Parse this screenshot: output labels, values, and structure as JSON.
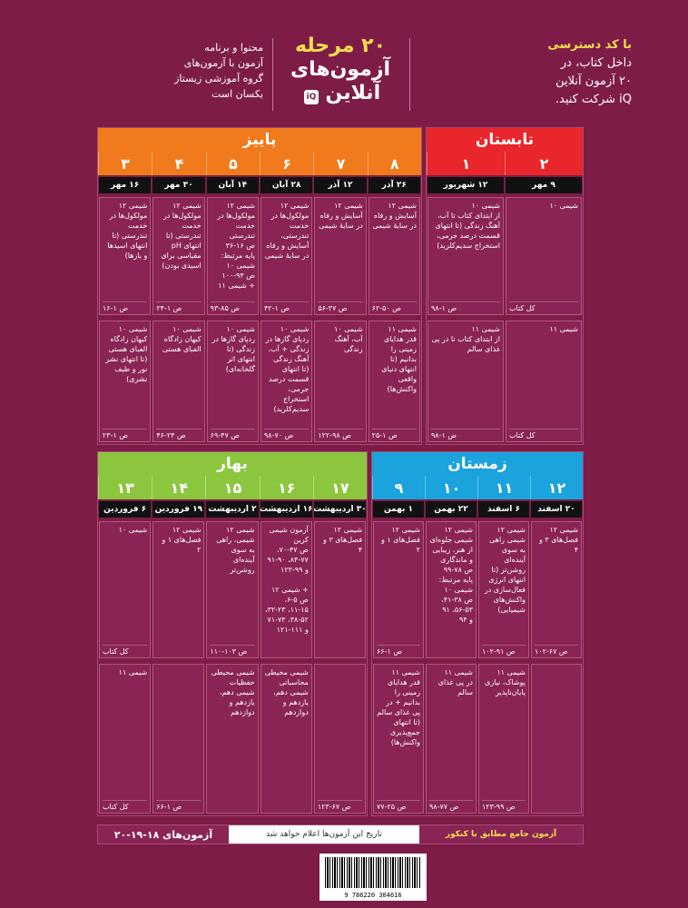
{
  "header": {
    "access": [
      "با کد دسترسی",
      "داخل کتاب، در",
      "۲۰ آزمون آنلاین",
      "iQ شرکت کنید."
    ],
    "title": [
      "۲۰ مرحله",
      "آزمون‌های",
      "آنلاین"
    ],
    "logo": "iQ",
    "content": [
      "محتوا و برنامه",
      "آزمون با آزمون‌های",
      "گروه آموزشی زیستاز",
      "یکسان است"
    ]
  },
  "groups": [
    {
      "id": "summer",
      "label": "تابستان",
      "color": "#e8262b",
      "nums": [
        "۱",
        "۲"
      ],
      "dates": [
        "۱۲ شهریور",
        "۹ مهر"
      ],
      "row1": [
        {
          "text": "شیمی ۱۰\nاز ابتدای کتاب تا آب، آهنگ زندگی (تا انتهای قسمت درصد جرمی، استخراج سدیم‌کلرید)",
          "page": "ص ۱-۹۸"
        },
        {
          "text": "شیمی ۱۰",
          "page": "کل کتاب"
        }
      ],
      "row2": [
        {
          "text": "شیمی ۱۱\nاز ابتدای کتاب تا در پی غذای سالم",
          "page": "ص ۱-۹۸"
        },
        {
          "text": "شیمی ۱۱",
          "page": "کل کتاب"
        }
      ]
    },
    {
      "id": "autumn",
      "label": "پاییز",
      "color": "#f07a1c",
      "nums": [
        "۳",
        "۴",
        "۵",
        "۶",
        "۷",
        "۸"
      ],
      "dates": [
        "۱۶ مهر",
        "۳۰ مهر",
        "۱۴ آبان",
        "۲۸ آبان",
        "۱۲ آذر",
        "۲۶ آذر"
      ],
      "row1": [
        {
          "text": "شیمی ۱۲\nمولکول‌ها در خدمت تندرستی (تا انتهای اسیدها و بازها)",
          "page": "ص ۱-۱۶"
        },
        {
          "text": "شیمی ۱۲\nمولکول‌ها در خدمت تندرستی (تا انتهای pH مقیاسی برای اسیدی بودن)",
          "page": "ص ۱-۲۴"
        },
        {
          "text": "شیمی ۱۲\nمولکول‌ها در خدمت تندرستی\nص ۱۶-۳۶\nپایه مرتبط:\nشیمی ۱۰\nص ۹۴-۱۰۰\n+ شیمی ۱۱",
          "page": "ص ۸۵-۹۳"
        },
        {
          "text": "شیمی ۱۲\nمولکول‌ها در خدمت تندرستی، آسایش و رفاه در سایهٔ شیمی",
          "page": "ص ۱-۴۲"
        },
        {
          "text": "شیمی ۱۲\nآسایش و رفاه در سایهٔ شیمی",
          "page": "ص ۳۷-۵۶"
        },
        {
          "text": "شیمی ۱۲\nآسایش و رفاه در سایهٔ شیمی",
          "page": "ص ۵۰-۶۲"
        }
      ],
      "row2": [
        {
          "text": "شیمی ۱۰\nکیهان زادگاه الفبای هستی (تا انتهای نشر نور و طیف نشری)",
          "page": "ص ۱-۲۳"
        },
        {
          "text": "شیمی ۱۰\nکیهان زادگاه الفبای هستی",
          "page": "ص ۲۴-۴۶"
        },
        {
          "text": "شیمی ۱۰\nردپای گازها در زندگی (تا انتهای اثر گلخانه‌ای)",
          "page": "ص ۴۷-۶۹"
        },
        {
          "text": "شیمی ۱۰\nردپای گازها در زندگی + آب، آهنگ زندگی (تا انتهای قسمت درصد جرمی، استخراج سدیم‌کلرید)",
          "page": "ص ۷۰-۹۸"
        },
        {
          "text": "شیمی ۱۰\nآب، آهنگ زندگی",
          "page": "ص ۹۸-۱۲۲"
        },
        {
          "text": "شیمی ۱۱\nقدر هدایای زمینی را بدانیم (تا انتهای دنیای واقعی واکنش‌ها)",
          "page": "ص ۱-۲۵"
        }
      ]
    },
    {
      "id": "winter",
      "label": "زمستان",
      "color": "#1aa3dd",
      "nums": [
        "۹",
        "۱۰",
        "۱۱",
        "۱۲"
      ],
      "dates": [
        "۱ بهمن",
        "۲۲ بهمن",
        "۶ اسفند",
        "۲۰ اسفند"
      ],
      "row1": [
        {
          "text": "شیمی ۱۲\nفصل‌های ۱ و ۲",
          "page": "ص ۱-۶۶"
        },
        {
          "text": "شیمی ۱۲\nشیمی جلوه‌ای از هنر، زیبایی و ماندگاری\nص ۷۸-۹۹\nپایه مرتبط:\nشیمی ۱۰\nص ۳۸-۴۱،\n۵۶-۵۳، ۹۱\nو ۹۴",
          "page": ""
        },
        {
          "text": "شیمی ۱۲\nشیمی راهی به سوی آینده‌ای روشن‌تر (تا انتهای انرژی فعال‌سازی در واکنش‌های شیمیایی)",
          "page": "ص ۹۱-۱۰۲"
        },
        {
          "text": "شیمی ۱۲\nفصل‌های ۳ و ۴",
          "page": "ص ۶۷-۱۰۲"
        }
      ],
      "row2": [
        {
          "text": "شیمی ۱۱\nقدر هدایای زمینی را بدانیم + در پی غذای سالم (تا انتهای جمع‌پذیری واکنش‌ها)",
          "page": "ص ۲۵-۷۷"
        },
        {
          "text": "شیمی ۱۱\nدر پی غذای سالم",
          "page": "ص ۷۷-۹۸"
        },
        {
          "text": "شیمی ۱۱\nپوشاک، نیازی پایان‌ناپذیر",
          "page": "ص ۹۹-۱۲۳"
        },
        {
          "text": "",
          "page": ""
        }
      ]
    },
    {
      "id": "spring",
      "label": "بهار",
      "color": "#8cc63e",
      "nums": [
        "۱۳",
        "۱۴",
        "۱۵",
        "۱۶",
        "۱۷"
      ],
      "dates": [
        "۶ فروردین",
        "۱۹ فروردین",
        "۲ اردیبهشت",
        "۱۶ اردیبهشت",
        "۳۰ اردیبهشت"
      ],
      "row1": [
        {
          "text": "شیمی ۱۰",
          "page": "کل کتاب"
        },
        {
          "text": "شیمی ۱۲\nفصل‌های ۱ و ۲",
          "page": ""
        },
        {
          "text": "شیمی ۱۲\nشیمی، راهی به سوی آینده‌ای روشن‌تر",
          "page": "ص ۱۰۳-۱۱۰"
        },
        {
          "text": "آزمون شیمی کرین\nص ۴۷-۷۰،\n۸۴-۷۷، ۹۱-۹۰ و ۹۹-۱۲۳\n\n+ شیمی ۱۲\nص ۵-۶،\n۱۱-۱۵، ۳۲-۲۳،\n۳۸-۵۲، ۷۱-۷۳\nو ۱۱۱-۱۲۱",
          "page": ""
        },
        {
          "text": "شیمی ۱۲\nفصل‌های ۳ و ۴",
          "page": ""
        }
      ],
      "row2": [
        {
          "text": "شیمی ۱۱",
          "page": "کل کتاب"
        },
        {
          "text": "",
          "page": "ص ۱-۶۶"
        },
        {
          "text": "شیمی محیطی\nحفظیات شیمی دهم، یازدهم و دوازدهم",
          "page": ""
        },
        {
          "text": "شیمی محیطی\nمحاسباتی شیمی دهم، یازدهم و دوازدهم",
          "page": ""
        },
        {
          "text": "",
          "page": "ص ۶۷-۱۲۳"
        }
      ]
    }
  ],
  "footer": {
    "exams": "آزمون‌های ۱۸-۱۹-۲۰",
    "note": "تاریخ این آزمون‌ها اعلام خواهد شد",
    "konkur": "آزمون جامع مطابق با کنکور"
  },
  "barcode": "9 786220 304616"
}
